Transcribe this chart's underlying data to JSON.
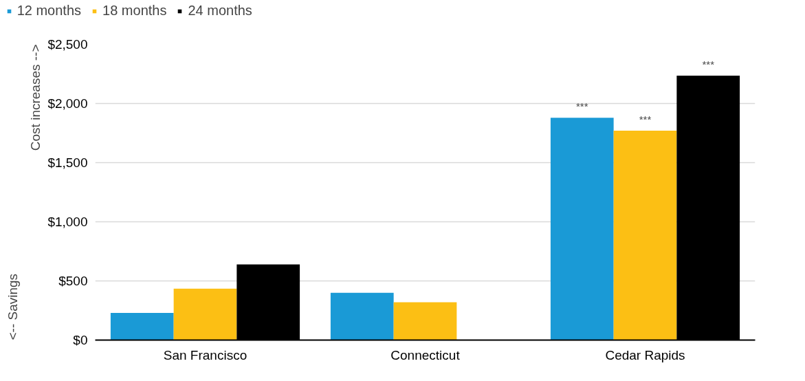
{
  "chart_data": {
    "type": "bar",
    "ylabel": "Cost increases -->",
    "annotations": [
      "<-- Savings"
    ],
    "categories": [
      "San Francisco",
      "Connecticut",
      "Cedar Rapids"
    ],
    "series": [
      {
        "name": "12 months",
        "color": "#1a9ad6",
        "values": [
          230,
          400,
          1880
        ],
        "value_labels": [
          null,
          null,
          "***"
        ]
      },
      {
        "name": "18 months",
        "color": "#fcbf14",
        "values": [
          435,
          320,
          1770
        ],
        "value_labels": [
          null,
          null,
          "***"
        ]
      },
      {
        "name": "24 months",
        "color": "#000000",
        "values": [
          640,
          null,
          2235
        ],
        "value_labels": [
          null,
          null,
          "***"
        ]
      }
    ],
    "ylim": [
      0,
      2500
    ],
    "yticks": [
      {
        "value": 0,
        "label": "$0"
      },
      {
        "value": 500,
        "label": "$500"
      },
      {
        "value": 1000,
        "label": "$1,000"
      },
      {
        "value": 1500,
        "label": "$1,500"
      },
      {
        "value": 2000,
        "label": "$2,000"
      },
      {
        "value": 2500,
        "label": "$2,500"
      }
    ],
    "grid": "y",
    "legend": "top left"
  }
}
